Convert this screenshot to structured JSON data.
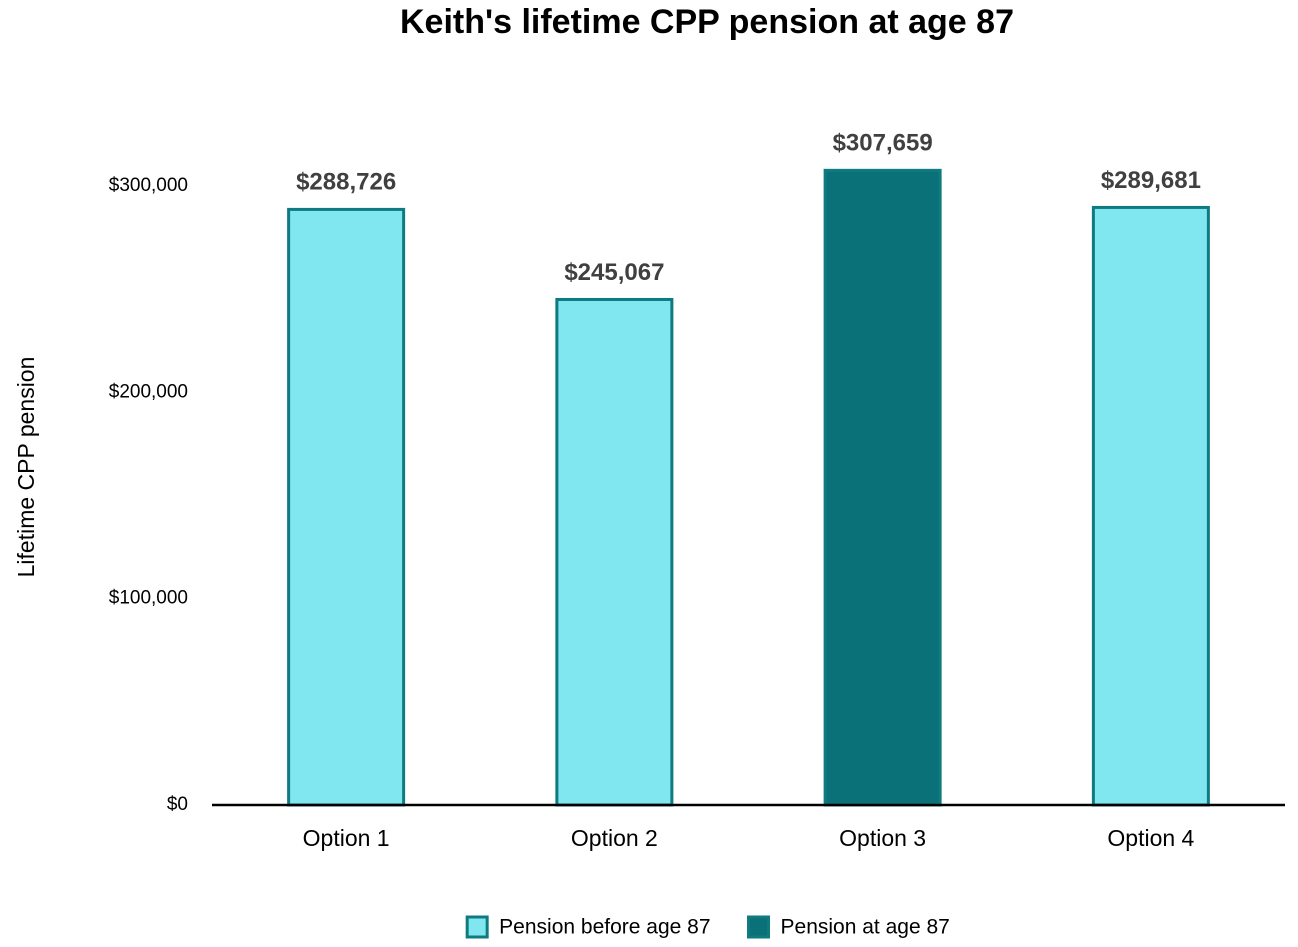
{
  "chart_data": {
    "type": "bar",
    "title": "Keith's lifetime CPP pension at age 87",
    "ylabel": "Lifetime CPP pension",
    "categories": [
      "Option 1",
      "Option 2",
      "Option 3",
      "Option 4"
    ],
    "series": [
      {
        "name": "Pension before age 87",
        "color": "#80e6f0",
        "values": [
          288726,
          245067,
          null,
          289681
        ],
        "value_labels": [
          "$288,726",
          "$245,067",
          null,
          "$289,681"
        ]
      },
      {
        "name": "Pension at age 87",
        "color": "#0b7178",
        "values": [
          null,
          null,
          307659,
          null
        ],
        "value_labels": [
          null,
          null,
          "$307,659",
          null
        ]
      }
    ],
    "edgecolor": "#0f7a80",
    "ylim": [
      0,
      350000
    ],
    "yticks": [
      {
        "value": 0,
        "label": "$0"
      },
      {
        "value": 100000,
        "label": "$100,000"
      },
      {
        "value": 200000,
        "label": "$200,000"
      },
      {
        "value": 300000,
        "label": "$300,000"
      }
    ],
    "grid": false,
    "legend": "bottom"
  }
}
